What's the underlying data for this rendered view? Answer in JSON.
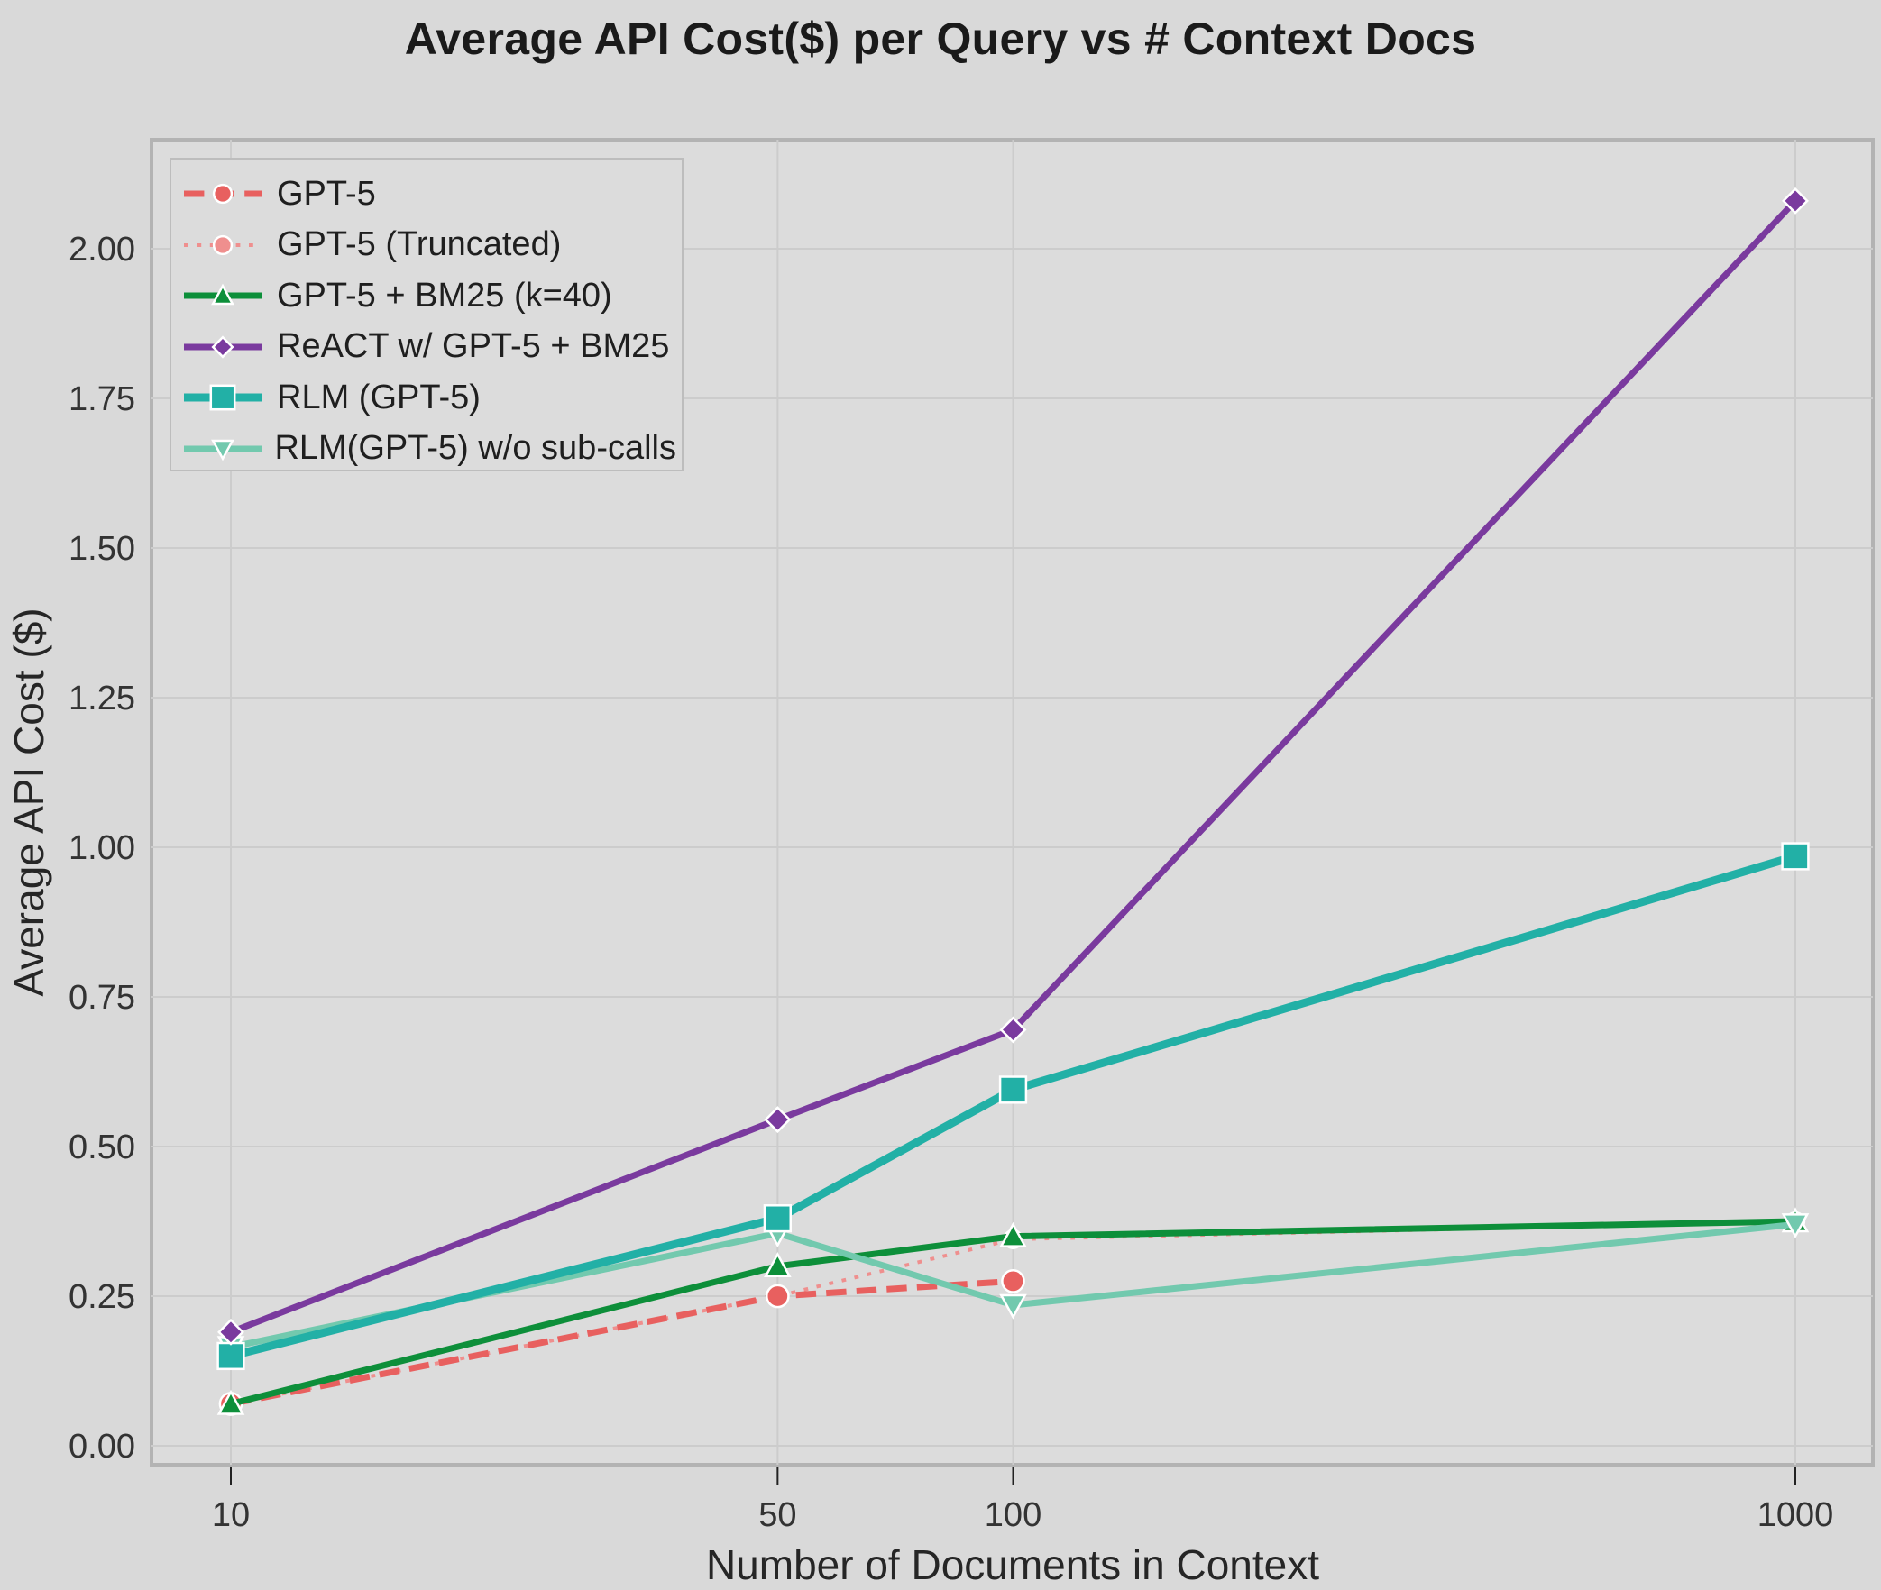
{
  "chart_data": {
    "type": "line",
    "title": "Average API Cost($) per Query vs # Context Docs",
    "xlabel": "Number of Documents in Context",
    "ylabel": "Average API Cost ($)",
    "x_scale": "log",
    "x": [
      10,
      50,
      100,
      1000
    ],
    "x_tick_labels": [
      "10",
      "50",
      "100",
      "1000"
    ],
    "y_ticks": [
      0.0,
      0.25,
      0.5,
      0.75,
      1.0,
      1.25,
      1.5,
      1.75,
      2.0
    ],
    "y_tick_labels": [
      "0.00",
      "0.25",
      "0.50",
      "0.75",
      "1.00",
      "1.25",
      "1.50",
      "1.75",
      "2.00"
    ],
    "ylim": [
      -0.04,
      2.17
    ],
    "grid": true,
    "legend_position": "upper left",
    "series": [
      {
        "name": "GPT-5",
        "color": "#e8605f",
        "linestyle": "dashed",
        "marker": "circle",
        "width": 7,
        "x": [
          10,
          50,
          100
        ],
        "values": [
          0.07,
          0.25,
          0.275
        ]
      },
      {
        "name": "GPT-5 (Truncated)",
        "color": "#ef8f8e",
        "linestyle": "dotted",
        "marker": "circle",
        "width": 4,
        "x": [
          10,
          50,
          100,
          1000
        ],
        "values": [
          0.07,
          0.25,
          0.345,
          0.375
        ]
      },
      {
        "name": "GPT-5 + BM25 (k=40)",
        "color": "#0d8f3a",
        "linestyle": "solid",
        "marker": "triangle-up",
        "width": 7,
        "x": [
          10,
          50,
          100,
          1000
        ],
        "values": [
          0.07,
          0.3,
          0.35,
          0.375
        ]
      },
      {
        "name": "ReACT w/ GPT-5 + BM25",
        "color": "#7a3a9e",
        "linestyle": "solid",
        "marker": "diamond",
        "width": 7,
        "x": [
          10,
          50,
          100,
          1000
        ],
        "values": [
          0.19,
          0.545,
          0.695,
          2.08
        ]
      },
      {
        "name": "RLM (GPT-5)",
        "color": "#22b0a6",
        "linestyle": "solid",
        "marker": "square",
        "width": 9,
        "x": [
          10,
          50,
          100,
          1000
        ],
        "values": [
          0.15,
          0.38,
          0.595,
          0.985
        ]
      },
      {
        "name": "RLM(GPT-5) w/o sub-calls",
        "color": "#72c9ae",
        "linestyle": "solid",
        "marker": "triangle-down",
        "width": 7,
        "x": [
          10,
          50,
          100,
          1000
        ],
        "values": [
          0.165,
          0.355,
          0.235,
          0.37
        ]
      }
    ]
  },
  "colors": {
    "background": "#d9d9d9",
    "plot_background": "#dcdcdc",
    "grid": "#cfcfcf",
    "frame": "#b3b3b3"
  }
}
